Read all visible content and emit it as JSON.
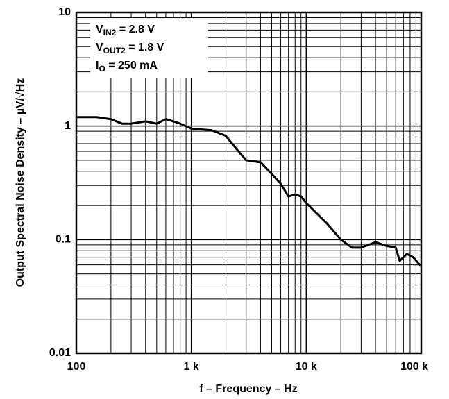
{
  "chart_data": {
    "type": "line",
    "xlabel": "f – Frequency – Hz",
    "ylabel": "Output Spectral Noise Density –  µV/√Hz",
    "annotations": [
      {
        "main": "V",
        "sub": "IN2",
        "rest": " = 2.8 V"
      },
      {
        "main": "V",
        "sub": "OUT2",
        "rest": " = 1.8 V"
      },
      {
        "main": "I",
        "sub": "O",
        "rest": " = 250 mA"
      }
    ],
    "xscale": "log",
    "yscale": "log",
    "grid": true,
    "xlim": [
      100,
      100000
    ],
    "ylim": [
      0.01,
      10
    ],
    "xticks": [
      100,
      {
        "value": 1000,
        "label": "1 k"
      },
      {
        "value": 10000,
        "label": "10 k"
      },
      {
        "value": 100000,
        "label": "100 k"
      }
    ],
    "yticks": [
      0.01,
      0.1,
      1,
      10
    ],
    "x_minor_ticks": [
      200,
      300,
      400,
      500,
      600,
      700,
      800,
      900,
      2000,
      3000,
      4000,
      5000,
      6000,
      7000,
      8000,
      9000,
      20000,
      30000,
      40000,
      50000,
      60000,
      70000,
      80000,
      90000
    ],
    "y_minor_ticks": [
      0.02,
      0.03,
      0.04,
      0.05,
      0.06,
      0.07,
      0.08,
      0.09,
      0.2,
      0.3,
      0.4,
      0.5,
      0.6,
      0.7,
      0.8,
      0.9,
      2,
      3,
      4,
      5,
      6,
      7,
      8,
      9
    ],
    "x": [
      100,
      150,
      200,
      250,
      300,
      400,
      500,
      600,
      700,
      800,
      1000,
      1500,
      2000,
      2500,
      3000,
      4000,
      5000,
      6000,
      7000,
      8000,
      9000,
      10000,
      15000,
      20000,
      25000,
      30000,
      40000,
      50000,
      60000,
      65000,
      75000,
      85000,
      100000
    ],
    "series": [
      {
        "color": "#000000",
        "values": [
          1.2,
          1.2,
          1.15,
          1.05,
          1.05,
          1.1,
          1.05,
          1.15,
          1.1,
          1.05,
          0.95,
          0.92,
          0.82,
          0.62,
          0.5,
          0.48,
          0.38,
          0.31,
          0.24,
          0.25,
          0.24,
          0.21,
          0.14,
          0.1,
          0.085,
          0.085,
          0.095,
          0.088,
          0.085,
          0.065,
          0.075,
          0.07,
          0.058
        ]
      }
    ]
  }
}
